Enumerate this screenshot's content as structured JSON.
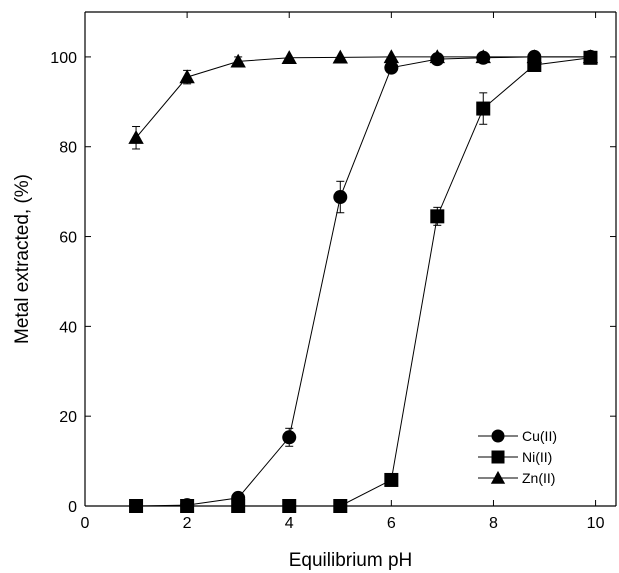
{
  "chart_data": {
    "type": "line",
    "xlabel": "Equilibrium pH",
    "ylabel": "Metal extracted, (%)",
    "xlim": [
      0,
      10.4
    ],
    "ylim": [
      0,
      110
    ],
    "xticks": [
      0,
      2,
      4,
      6,
      8,
      10
    ],
    "yticks": [
      0,
      20,
      40,
      60,
      80,
      100
    ],
    "grid": false,
    "legend_position": "bottom-right",
    "series": [
      {
        "name": "Cu(II)",
        "marker": "circle",
        "x": [
          1.0,
          2.0,
          3.0,
          4.0,
          5.0,
          6.0,
          6.9,
          7.8,
          8.8,
          9.9
        ],
        "y": [
          0.0,
          0.2,
          1.8,
          15.3,
          68.8,
          97.6,
          99.5,
          99.8,
          100.0,
          100.0
        ],
        "err": [
          0.0,
          0.0,
          0.0,
          2.0,
          3.5,
          0.0,
          0.0,
          0.0,
          0.0,
          0.0
        ]
      },
      {
        "name": "Ni(II)",
        "marker": "square",
        "x": [
          1.0,
          2.0,
          3.0,
          4.0,
          5.0,
          6.0,
          6.9,
          7.8,
          8.8,
          9.9
        ],
        "y": [
          0.0,
          0.0,
          0.0,
          0.0,
          0.0,
          5.8,
          64.5,
          88.5,
          98.2,
          99.8
        ],
        "err": [
          0.0,
          0.0,
          0.0,
          0.0,
          0.0,
          0.0,
          2.0,
          3.5,
          1.0,
          0.0
        ]
      },
      {
        "name": "Zn(II)",
        "marker": "triangle",
        "x": [
          1.0,
          2.0,
          3.0,
          4.0,
          5.0,
          6.0,
          6.9,
          7.8,
          8.8,
          9.9
        ],
        "y": [
          82.0,
          95.5,
          99.0,
          99.8,
          99.9,
          100.0,
          100.0,
          100.0,
          100.0,
          100.0
        ],
        "err": [
          2.5,
          1.5,
          1.0,
          0.0,
          0.0,
          0.0,
          0.0,
          0.0,
          0.0,
          0.0
        ]
      }
    ]
  }
}
